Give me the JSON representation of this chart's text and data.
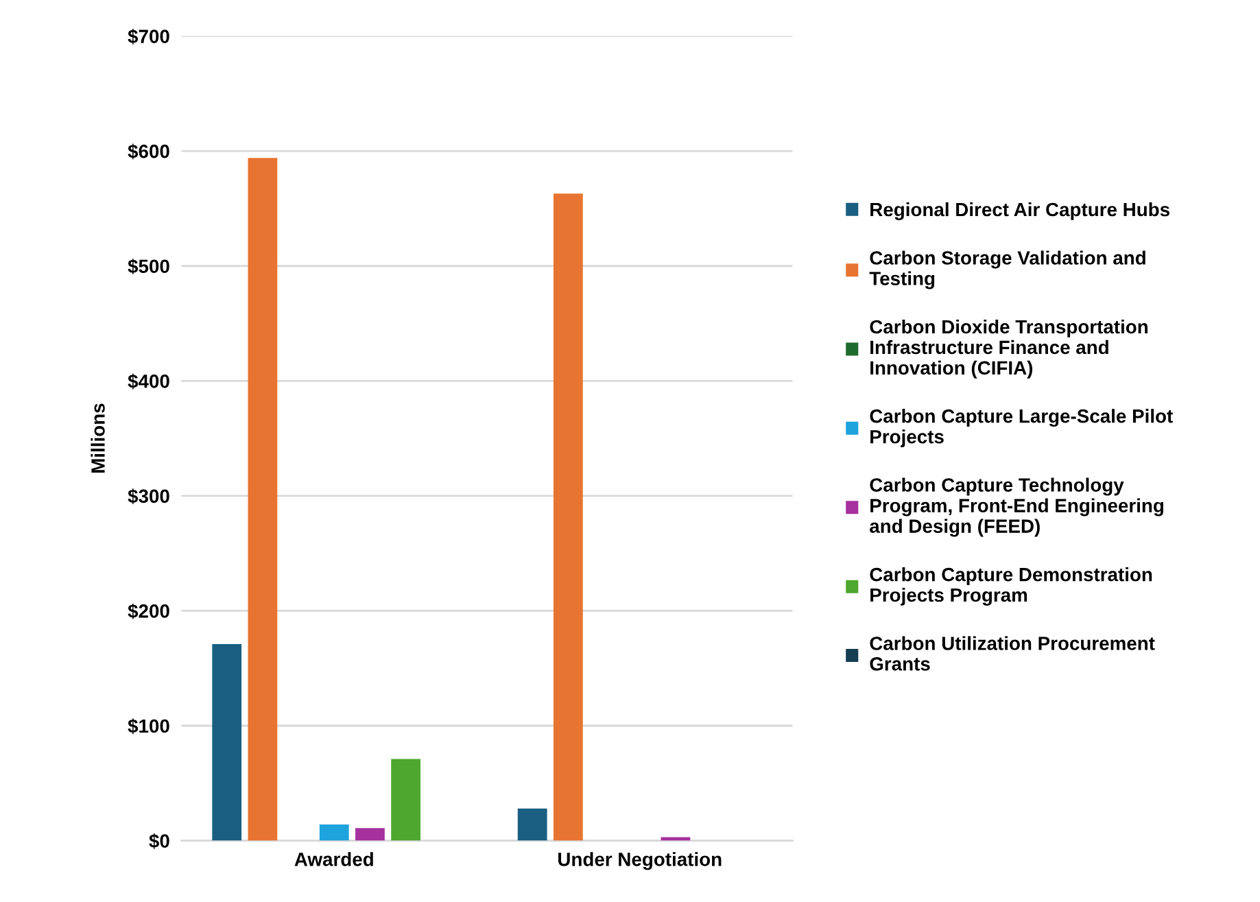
{
  "chart_data": {
    "type": "bar",
    "ylabel": "Millions",
    "categories": [
      "Awarded",
      "Under Negotiation"
    ],
    "series": [
      {
        "name": "Regional Direct Air Capture Hubs",
        "color": "#1a5e82",
        "values": [
          171,
          28
        ]
      },
      {
        "name": "Carbon Storage Validation and Testing",
        "color": "#e87432",
        "values": [
          594,
          563
        ]
      },
      {
        "name": "Carbon Dioxide Transportation Infrastructure Finance and Innovation (CIFIA)",
        "color": "#1e6b2e",
        "values": [
          0,
          0
        ]
      },
      {
        "name": "Carbon Capture Large-Scale Pilot Projects",
        "color": "#1ea3dc",
        "values": [
          14,
          0
        ]
      },
      {
        "name": "Carbon Capture Technology Program, Front-End Engineering and Design (FEED)",
        "color": "#a5309e",
        "values": [
          11,
          3
        ]
      },
      {
        "name": "Carbon Capture Demonstration Projects Program",
        "color": "#4ea72e",
        "values": [
          71,
          0
        ]
      },
      {
        "name": "Carbon Utilization Procurement Grants",
        "color": "#163e52",
        "values": [
          0,
          0
        ]
      }
    ],
    "ylim": [
      0,
      700
    ],
    "yticks": [
      {
        "value": 0,
        "label": "$0"
      },
      {
        "value": 100,
        "label": "$100"
      },
      {
        "value": 200,
        "label": "$200"
      },
      {
        "value": 300,
        "label": "$300"
      },
      {
        "value": 400,
        "label": "$400"
      },
      {
        "value": 500,
        "label": "$500"
      },
      {
        "value": 600,
        "label": "$600"
      },
      {
        "value": 700,
        "label": "$700"
      }
    ],
    "grid": "y",
    "legend": "right"
  }
}
